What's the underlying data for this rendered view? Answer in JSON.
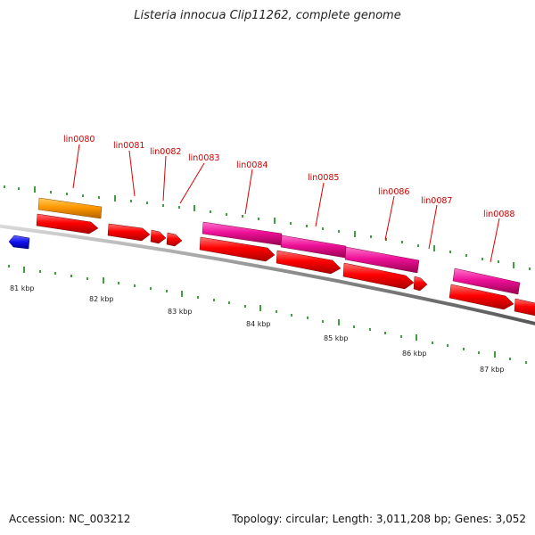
{
  "title": "Listeria innocua Clip11262, complete genome",
  "footer": {
    "accession": "Accession: NC_003212",
    "summary": "Topology: circular; Length: 3,011,208 bp; Genes: 3,052"
  },
  "colors": {
    "cds": "#ff0000",
    "orange_feature": "#ff9900",
    "magenta_feature": "#ee1199",
    "blue_feature": "#1010ee",
    "backbone": "#888888",
    "tick": "#008000",
    "label": "#cc0000"
  },
  "scale_labels": [
    "81 kbp",
    "82 kbp",
    "83 kbp",
    "84 kbp",
    "85 kbp",
    "86 kbp",
    "87 kbp"
  ],
  "gene_labels": [
    "lin0080",
    "lin0081",
    "lin0082",
    "lin0083",
    "lin0084",
    "lin0085",
    "lin0086",
    "lin0087",
    "lin0088"
  ]
}
